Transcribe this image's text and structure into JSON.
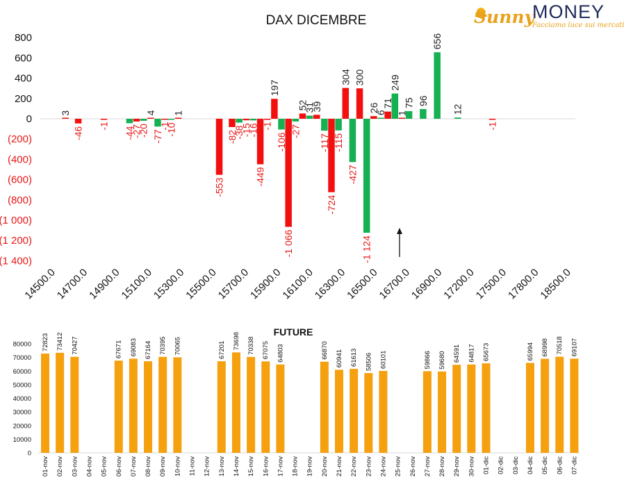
{
  "logo": {
    "part1": "Sunny",
    "part2": "MONEY",
    "tagline": "Facciamo luce sui mercati"
  },
  "colors": {
    "red": "#f20f0f",
    "green": "#14b052",
    "orange": "#f5a00f",
    "negative_text": "#e81818",
    "positive_text": "#222222"
  },
  "chart_data": [
    {
      "type": "bar",
      "title": "DAX DICEMBRE",
      "ylim": [
        -1400,
        800
      ],
      "yticks": [
        {
          "value": 800,
          "label": "800"
        },
        {
          "value": 600,
          "label": "600"
        },
        {
          "value": 400,
          "label": "400"
        },
        {
          "value": 200,
          "label": "200"
        },
        {
          "value": 0,
          "label": "0"
        },
        {
          "value": -200,
          "label": "(200)"
        },
        {
          "value": -400,
          "label": "(400)"
        },
        {
          "value": -600,
          "label": "(600)"
        },
        {
          "value": -800,
          "label": "(800)"
        },
        {
          "value": -1000,
          "label": "(1 000)"
        },
        {
          "value": -1200,
          "label": "(1 200)"
        },
        {
          "value": -1400,
          "label": "(1 400)"
        }
      ],
      "x_tick_labels": [
        "14500.0",
        "14700.0",
        "14900.0",
        "15100.0",
        "15300.0",
        "15500.0",
        "15700.0",
        "15900.0",
        "16100.0",
        "16300.0",
        "16500.0",
        "16700.0",
        "16900.0",
        "17200.0",
        "17500.0",
        "17800.0",
        "18500.0"
      ],
      "bars": [
        {
          "pos": 1.2,
          "value": 3,
          "label": "3",
          "color": "red"
        },
        {
          "pos": 2.2,
          "value": -46,
          "label": "-46",
          "color": "red"
        },
        {
          "pos": 4.2,
          "value": -1,
          "label": "-1",
          "color": "red"
        },
        {
          "pos": 6.2,
          "value": -44,
          "label": "-44",
          "color": "green"
        },
        {
          "pos": 6.75,
          "value": -27,
          "label": "-27",
          "color": "red"
        },
        {
          "pos": 7.3,
          "value": -20,
          "label": "-20",
          "color": "green"
        },
        {
          "pos": 7.85,
          "value": 4,
          "label": "4",
          "color": "red"
        },
        {
          "pos": 8.4,
          "value": -77,
          "label": "-77",
          "color": "green"
        },
        {
          "pos": 8.95,
          "value": -1,
          "label": "-1",
          "color": "red"
        },
        {
          "pos": 9.45,
          "value": -10,
          "label": "-10",
          "color": "green"
        },
        {
          "pos": 10.0,
          "value": 1,
          "label": "1",
          "color": "red"
        },
        {
          "pos": 13.2,
          "value": -553,
          "label": "-553",
          "color": "red"
        },
        {
          "pos": 14.2,
          "value": -82,
          "label": "-82",
          "color": "red"
        },
        {
          "pos": 14.75,
          "value": -38,
          "label": "-38",
          "color": "green"
        },
        {
          "pos": 15.3,
          "value": -15,
          "label": "-15",
          "color": "red"
        },
        {
          "pos": 15.85,
          "value": -16,
          "label": "-16",
          "color": "green"
        },
        {
          "pos": 16.4,
          "value": -449,
          "label": "-449",
          "color": "red"
        },
        {
          "pos": 16.95,
          "value": -1,
          "label": "-1",
          "color": "red"
        },
        {
          "pos": 17.5,
          "value": 197,
          "label": "197",
          "color": "red"
        },
        {
          "pos": 18.05,
          "value": -106,
          "label": "-106",
          "color": "green"
        },
        {
          "pos": 18.6,
          "value": -1066,
          "label": "-1 066",
          "color": "red"
        },
        {
          "pos": 19.15,
          "value": -27,
          "label": "-27",
          "color": "green"
        },
        {
          "pos": 19.7,
          "value": 52,
          "label": "52",
          "color": "red"
        },
        {
          "pos": 20.25,
          "value": 31,
          "label": "31",
          "color": "green"
        },
        {
          "pos": 20.8,
          "value": 39,
          "label": "39",
          "color": "red"
        },
        {
          "pos": 21.4,
          "value": -117,
          "label": "-117",
          "color": "green"
        },
        {
          "pos": 21.95,
          "value": -724,
          "label": "-724",
          "color": "red"
        },
        {
          "pos": 22.5,
          "value": -115,
          "label": "-115",
          "color": "green"
        },
        {
          "pos": 23.05,
          "value": 304,
          "label": "304",
          "color": "red"
        },
        {
          "pos": 23.6,
          "value": -427,
          "label": "-427",
          "color": "green"
        },
        {
          "pos": 24.15,
          "value": 300,
          "label": "300",
          "color": "red"
        },
        {
          "pos": 24.7,
          "value": -1124,
          "label": "-1 124",
          "color": "green"
        },
        {
          "pos": 25.25,
          "value": 26,
          "label": "26",
          "color": "red"
        },
        {
          "pos": 25.8,
          "value": 6,
          "label": "6",
          "color": "green"
        },
        {
          "pos": 26.35,
          "value": 71,
          "label": "71",
          "color": "red"
        },
        {
          "pos": 26.9,
          "value": 249,
          "label": "249",
          "color": "green"
        },
        {
          "pos": 27.45,
          "value": 1,
          "label": "1",
          "color": "red"
        },
        {
          "pos": 28.0,
          "value": 75,
          "label": "75",
          "color": "green"
        },
        {
          "pos": 29.1,
          "value": 96,
          "label": "96",
          "color": "green"
        },
        {
          "pos": 30.2,
          "value": 656,
          "label": "656",
          "color": "green"
        },
        {
          "pos": 31.8,
          "value": 12,
          "label": "12",
          "color": "green"
        },
        {
          "pos": 34.5,
          "value": -1,
          "label": "-1",
          "color": "red"
        }
      ]
    },
    {
      "type": "bar",
      "title": "FUTURE",
      "ylim": [
        0,
        80000
      ],
      "yticks": [
        0,
        10000,
        20000,
        30000,
        40000,
        50000,
        60000,
        70000,
        80000
      ],
      "categories": [
        "01-nov",
        "02-nov",
        "03-nov",
        "04-nov",
        "05-nov",
        "06-nov",
        "07-nov",
        "08-nov",
        "09-nov",
        "10-nov",
        "11-nov",
        "12-nov",
        "13-nov",
        "14-nov",
        "15-nov",
        "16-nov",
        "17-nov",
        "18-nov",
        "19-nov",
        "20-nov",
        "21-nov",
        "22-nov",
        "23-nov",
        "24-nov",
        "25-nov",
        "26-nov",
        "27-nov",
        "28-nov",
        "29-nov",
        "30-nov",
        "01-dic",
        "02-dic",
        "03-dic",
        "04-dic",
        "05-dic",
        "06-dic",
        "07-dic"
      ],
      "values": [
        72823,
        73412,
        70427,
        null,
        null,
        67671,
        69083,
        67164,
        70395,
        70065,
        null,
        null,
        67201,
        73698,
        70338,
        67075,
        64803,
        null,
        null,
        66870,
        60941,
        61613,
        58506,
        60101,
        null,
        null,
        59866,
        59680,
        64591,
        64817,
        65673,
        null,
        null,
        65994,
        68998,
        70518,
        69107
      ]
    }
  ]
}
